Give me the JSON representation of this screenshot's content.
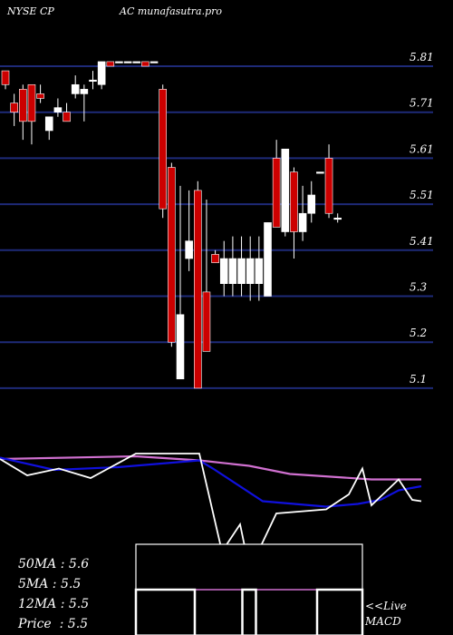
{
  "header": {
    "ticker": "NYSE CP",
    "source": "AC munafasutra.pro"
  },
  "stats": [
    {
      "label": "50MA",
      "value": "5.6"
    },
    {
      "label": "5MA",
      "value": "5.5"
    },
    {
      "label": "12MA",
      "value": "5.5"
    },
    {
      "label": "Price",
      "value": "5.5"
    }
  ],
  "macd_label": {
    "line1": "<<Live",
    "line2": "MACD"
  },
  "colors": {
    "background": "#000000",
    "gridline": "#1e2a78",
    "bull_candle": "#ffffff",
    "bear_candle": "#cc0000",
    "ma_long": "#d070d0",
    "ma_mid": "#1010dd",
    "ma_short": "#ffffff"
  },
  "chart_data": {
    "type": "candlestick",
    "price_axis": {
      "ticks": [
        "5.81",
        "5.71",
        "5.61",
        "5.51",
        "5.41",
        "5.3",
        "5.2",
        "5.1"
      ],
      "min": 5.08,
      "max": 5.86
    },
    "candles": [
      {
        "o": 5.8,
        "h": 5.8,
        "l": 5.76,
        "c": 5.77
      },
      {
        "o": 5.73,
        "h": 5.75,
        "l": 5.68,
        "c": 5.71
      },
      {
        "o": 5.76,
        "h": 5.77,
        "l": 5.65,
        "c": 5.69
      },
      {
        "o": 5.77,
        "h": 5.77,
        "l": 5.64,
        "c": 5.69
      },
      {
        "o": 5.75,
        "h": 5.77,
        "l": 5.73,
        "c": 5.74
      },
      {
        "o": 5.67,
        "h": 5.7,
        "l": 5.65,
        "c": 5.7
      },
      {
        "o": 5.71,
        "h": 5.74,
        "l": 5.7,
        "c": 5.72
      },
      {
        "o": 5.71,
        "h": 5.73,
        "l": 5.69,
        "c": 5.69
      },
      {
        "o": 5.75,
        "h": 5.79,
        "l": 5.74,
        "c": 5.77
      },
      {
        "o": 5.75,
        "h": 5.77,
        "l": 5.69,
        "c": 5.76
      },
      {
        "o": 5.78,
        "h": 5.8,
        "l": 5.76,
        "c": 5.78
      },
      {
        "o": 5.77,
        "h": 5.82,
        "l": 5.76,
        "c": 5.82
      },
      {
        "o": 5.82,
        "h": 5.82,
        "l": 5.81,
        "c": 5.81
      },
      {
        "o": 5.82,
        "h": 5.82,
        "l": 5.82,
        "c": 5.82
      },
      {
        "o": 5.82,
        "h": 5.82,
        "l": 5.82,
        "c": 5.82
      },
      {
        "o": 5.82,
        "h": 5.82,
        "l": 5.82,
        "c": 5.82
      },
      {
        "o": 5.82,
        "h": 5.82,
        "l": 5.81,
        "c": 5.81
      },
      {
        "o": 5.82,
        "h": 5.82,
        "l": 5.82,
        "c": 5.82
      },
      {
        "o": 5.76,
        "h": 5.77,
        "l": 5.48,
        "c": 5.5
      },
      {
        "o": 5.59,
        "h": 5.6,
        "l": 5.19,
        "c": 5.2
      },
      {
        "o": 5.12,
        "h": 5.55,
        "l": 5.12,
        "c": 5.26
      },
      {
        "o": 5.39,
        "h": 5.54,
        "l": 5.36,
        "c": 5.43
      },
      {
        "o": 5.54,
        "h": 5.56,
        "l": 5.1,
        "c": 5.1
      },
      {
        "o": 5.31,
        "h": 5.52,
        "l": 5.18,
        "c": 5.18
      },
      {
        "o": 5.4,
        "h": 5.41,
        "l": 5.38,
        "c": 5.38
      },
      {
        "o": 5.33,
        "h": 5.43,
        "l": 5.3,
        "c": 5.39
      },
      {
        "o": 5.33,
        "h": 5.44,
        "l": 5.3,
        "c": 5.39
      },
      {
        "o": 5.33,
        "h": 5.44,
        "l": 5.3,
        "c": 5.39
      },
      {
        "o": 5.33,
        "h": 5.44,
        "l": 5.29,
        "c": 5.39
      },
      {
        "o": 5.33,
        "h": 5.44,
        "l": 5.29,
        "c": 5.39
      },
      {
        "o": 5.3,
        "h": 5.47,
        "l": 5.3,
        "c": 5.47
      },
      {
        "o": 5.61,
        "h": 5.65,
        "l": 5.46,
        "c": 5.46
      },
      {
        "o": 5.45,
        "h": 5.63,
        "l": 5.44,
        "c": 5.63
      },
      {
        "o": 5.58,
        "h": 5.59,
        "l": 5.39,
        "c": 5.45
      },
      {
        "o": 5.45,
        "h": 5.55,
        "l": 5.43,
        "c": 5.49
      },
      {
        "o": 5.49,
        "h": 5.56,
        "l": 5.47,
        "c": 5.53
      },
      {
        "o": 5.58,
        "h": 5.58,
        "l": 5.58,
        "c": 5.58
      },
      {
        "o": 5.61,
        "h": 5.64,
        "l": 5.48,
        "c": 5.49
      },
      {
        "o": 5.48,
        "h": 5.49,
        "l": 5.47,
        "c": 5.48
      }
    ],
    "ma_panel": {
      "lines": [
        {
          "role": "ma_long",
          "points": [
            [
              0,
              0.2
            ],
            [
              0.3,
              0.1
            ],
            [
              0.44,
              0.25
            ],
            [
              0.55,
              0.45
            ],
            [
              0.64,
              0.75
            ],
            [
              0.82,
              0.95
            ],
            [
              0.93,
              0.95
            ]
          ]
        },
        {
          "role": "ma_mid",
          "points": [
            [
              0,
              0.15
            ],
            [
              0.12,
              0.6
            ],
            [
              0.26,
              0.5
            ],
            [
              0.44,
              0.25
            ],
            [
              0.47,
              0.55
            ],
            [
              0.58,
              1.75
            ],
            [
              0.72,
              1.95
            ],
            [
              0.79,
              1.85
            ],
            [
              0.84,
              1.7
            ],
            [
              0.88,
              1.35
            ],
            [
              0.93,
              1.2
            ]
          ]
        },
        {
          "role": "ma_short",
          "points": [
            [
              0,
              0.2
            ],
            [
              0.06,
              0.8
            ],
            [
              0.13,
              0.55
            ],
            [
              0.2,
              0.9
            ],
            [
              0.3,
              0.0
            ],
            [
              0.44,
              0.0
            ],
            [
              0.49,
              3.6
            ],
            [
              0.53,
              2.6
            ],
            [
              0.54,
              3.4
            ],
            [
              0.57,
              3.6
            ],
            [
              0.61,
              2.2
            ],
            [
              0.72,
              2.05
            ],
            [
              0.77,
              1.5
            ],
            [
              0.8,
              0.55
            ],
            [
              0.82,
              1.9
            ],
            [
              0.88,
              0.95
            ],
            [
              0.91,
              1.7
            ],
            [
              0.93,
              1.75
            ]
          ]
        }
      ]
    },
    "macd_panel": {
      "signal_level": 0.5,
      "histogram": [
        [
          0.0,
          0.26
        ],
        [
          0.47,
          0.53
        ],
        [
          0.8,
          1.0
        ]
      ]
    }
  }
}
